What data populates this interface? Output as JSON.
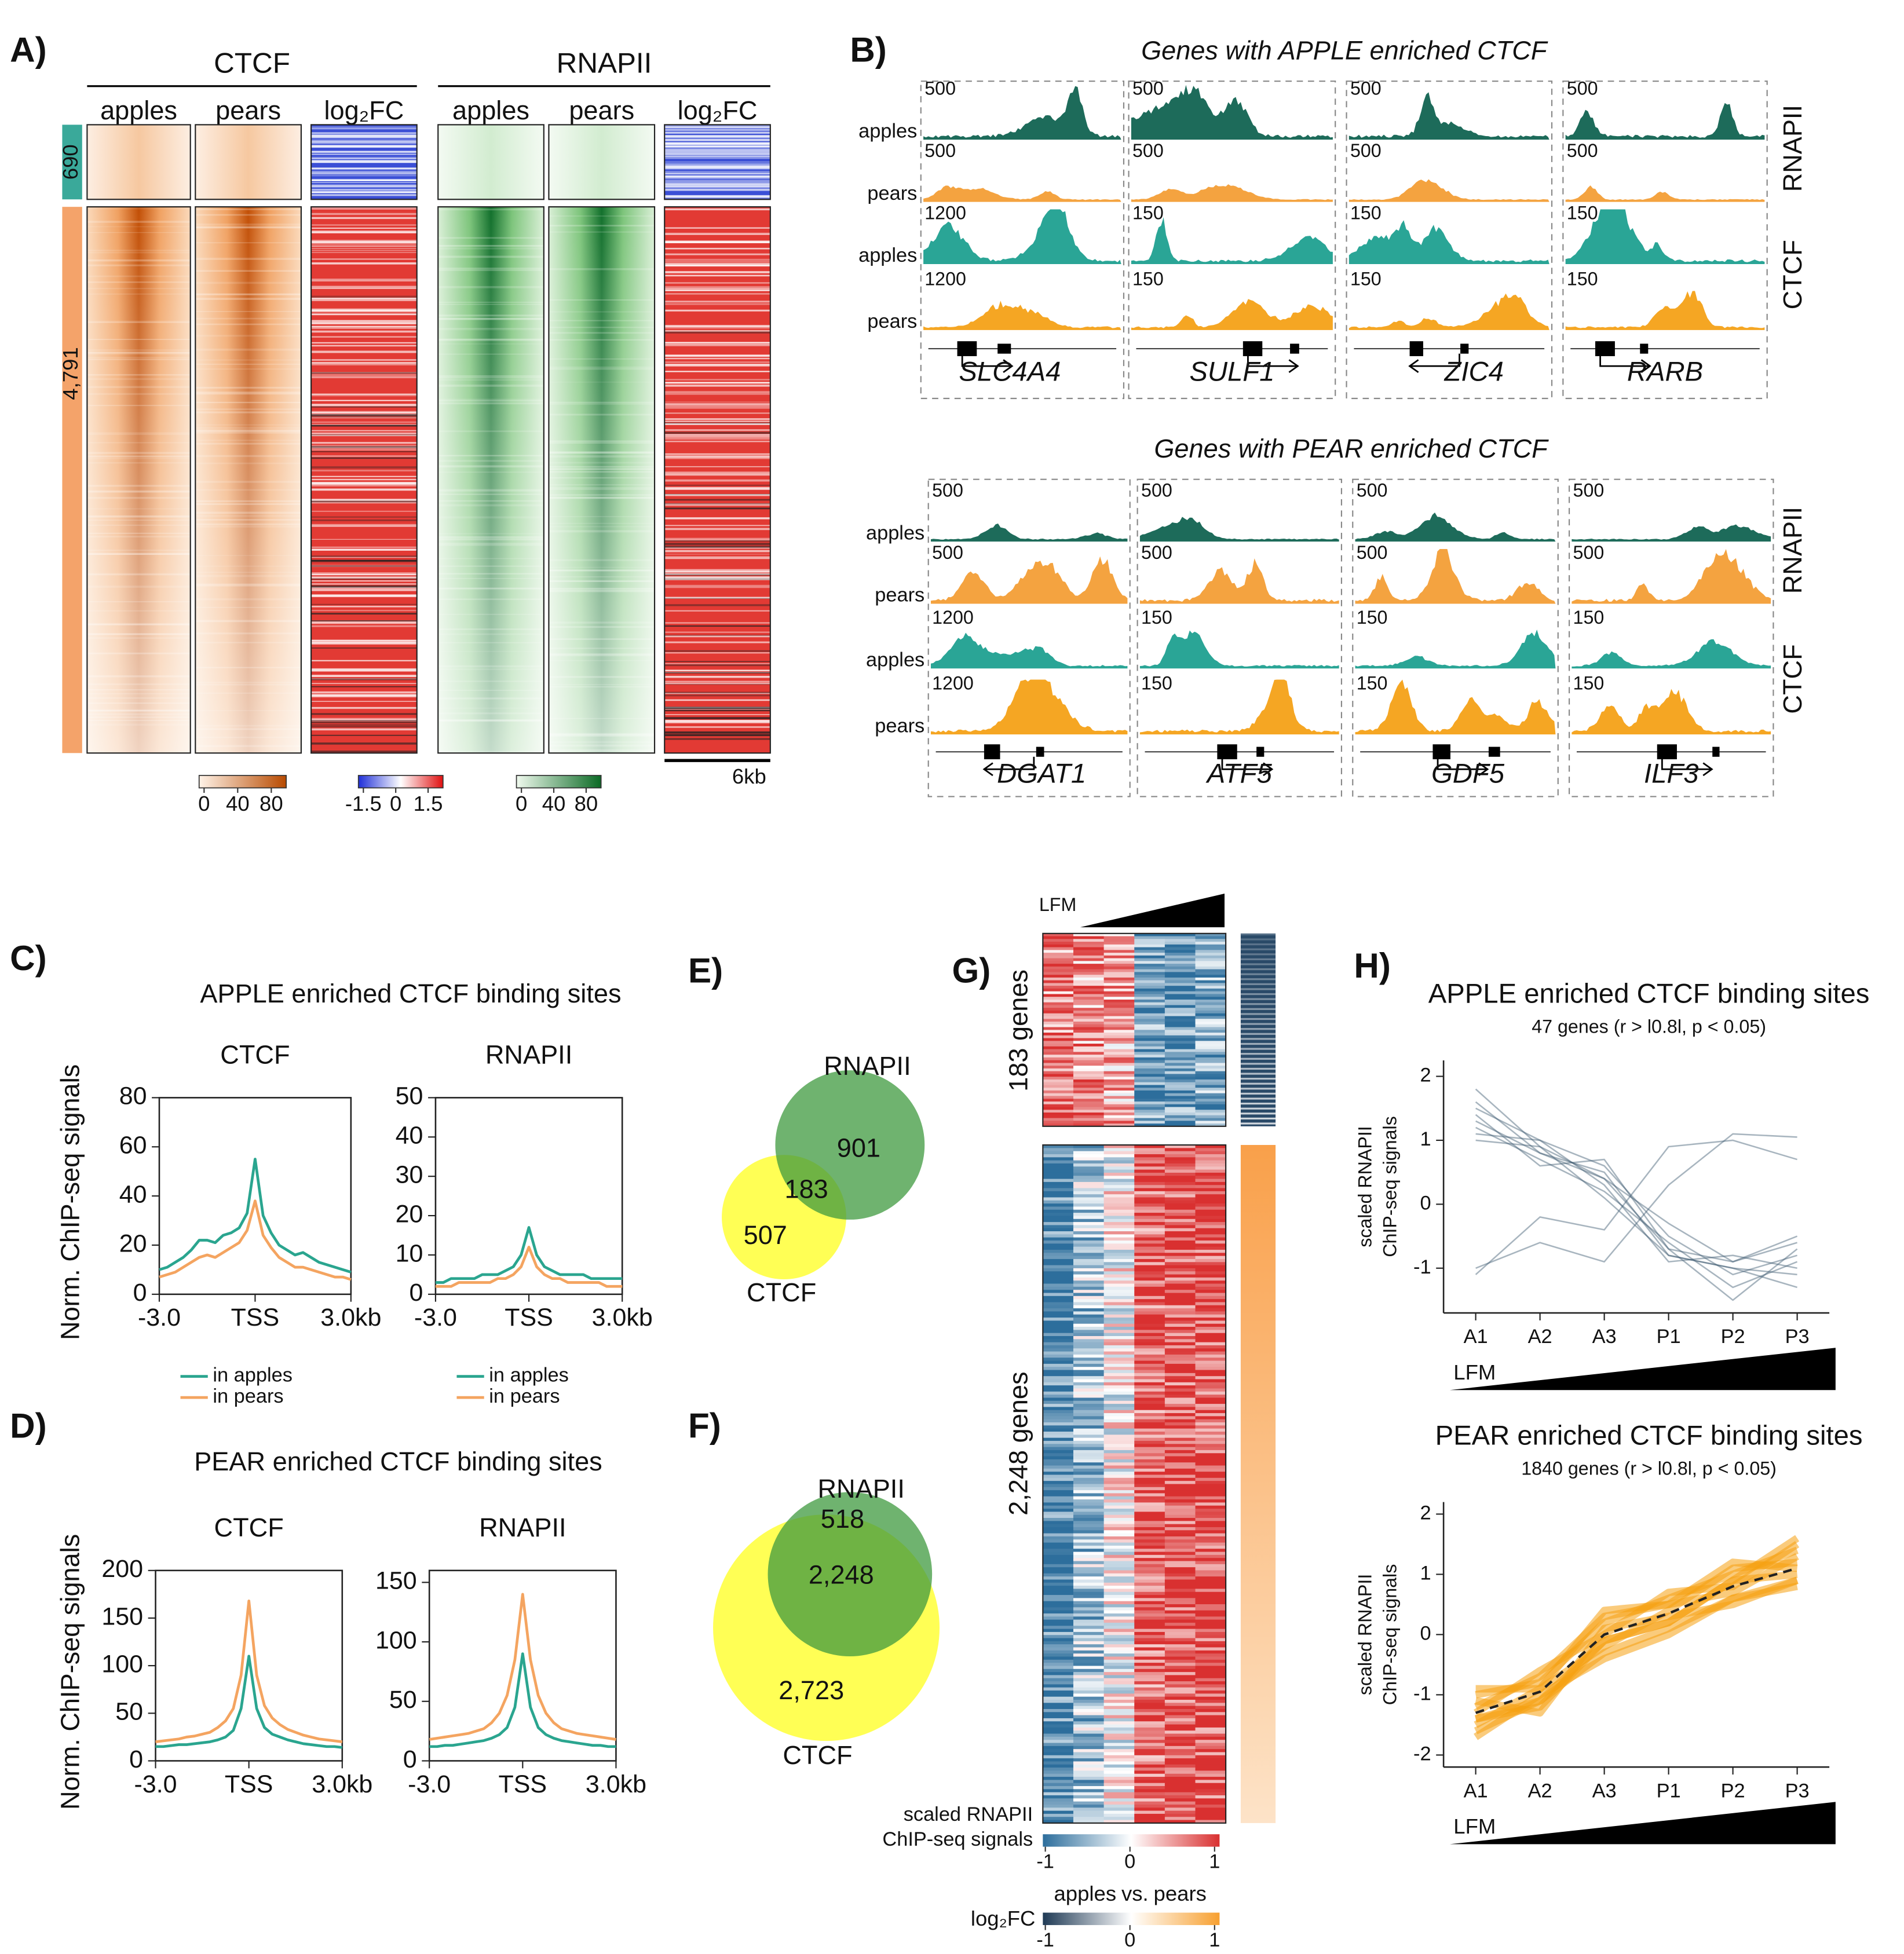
{
  "panel_labels": [
    "A)",
    "B)",
    "C)",
    "D)",
    "E)",
    "F)",
    "G)",
    "H)"
  ],
  "heatmap_a": {
    "groups": [
      {
        "title": "CTCF",
        "columns": [
          "apples",
          "pears",
          "log₂FC"
        ]
      },
      {
        "title": "RNAPII",
        "columns": [
          "apples",
          "pears",
          "log₂FC"
        ]
      }
    ],
    "rows": [
      690,
      "4,791"
    ],
    "colorbars": [
      {
        "ticks": [
          0,
          40,
          80
        ]
      },
      {
        "ticks": [
          -1.5,
          0,
          1.5
        ]
      },
      {
        "ticks": [
          0,
          40,
          80
        ]
      }
    ],
    "scale_bar": "6kb"
  },
  "panel_b": {
    "sections": [
      {
        "title": "Genes with APPLE enriched CTCF",
        "row_labels": [
          "apples",
          "pears",
          "apples",
          "pears"
        ],
        "side_labels": [
          "RNAPII",
          "CTCF"
        ],
        "genes": [
          {
            "name": "SLC4A4",
            "scales": [
              500,
              500,
              1200,
              1200
            ]
          },
          {
            "name": "SULF1",
            "scales": [
              500,
              500,
              150,
              150
            ]
          },
          {
            "name": "ZIC4",
            "scales": [
              500,
              500,
              150,
              150
            ]
          },
          {
            "name": "RARB",
            "scales": [
              500,
              500,
              150,
              150
            ]
          }
        ]
      },
      {
        "title": "Genes with PEAR enriched CTCF",
        "row_labels": [
          "apples",
          "pears",
          "apples",
          "pears"
        ],
        "side_labels": [
          "RNAPII",
          "CTCF"
        ],
        "genes": [
          {
            "name": "DGAT1",
            "scales": [
              500,
              500,
              1200,
              1200
            ]
          },
          {
            "name": "ATF5",
            "scales": [
              500,
              500,
              150,
              150
            ]
          },
          {
            "name": "GDF5",
            "scales": [
              500,
              500,
              150,
              150
            ]
          },
          {
            "name": "ILF3",
            "scales": [
              500,
              500,
              150,
              150
            ]
          }
        ]
      }
    ]
  },
  "section_titles": {
    "C": "APPLE enriched CTCF binding sites",
    "D": "PEAR enriched CTCF binding sites"
  },
  "venn_e": {
    "sets": [
      "RNAPII",
      "CTCF"
    ],
    "counts": [
      901,
      183,
      507
    ]
  },
  "venn_f": {
    "sets": [
      "RNAPII",
      "CTCF"
    ],
    "counts": [
      518,
      "2,248",
      "2,723"
    ]
  },
  "heatmap_g": {
    "wedge_label": "LFM",
    "blocks": [
      "183 genes",
      "2,248 genes"
    ],
    "colorbar_label": [
      "scaled RNAPII",
      "ChIP-seq signals"
    ],
    "colorbar_ticks": [
      -1,
      0,
      1
    ],
    "fc_legend": {
      "title": [
        "apples",
        "vs.",
        "pears"
      ],
      "title_colors": [
        "#2aa596",
        "#111111",
        "#f5a623"
      ],
      "label": "log₂FC",
      "ticks": [
        -1,
        0,
        1
      ]
    }
  },
  "chart_data": [
    {
      "type": "line",
      "title": "CTCF",
      "ylabel": "Norm. ChIP-seq signals",
      "frame": true,
      "legend": "below",
      "x": [
        -3,
        -2.75,
        -2.5,
        -2.25,
        -2,
        -1.75,
        -1.5,
        -1.25,
        -1,
        -0.75,
        -0.5,
        -0.25,
        0,
        0.25,
        0.5,
        0.75,
        1,
        1.25,
        1.5,
        1.75,
        2,
        2.25,
        2.5,
        2.75,
        3
      ],
      "xlim": [
        -3,
        3
      ],
      "xticks": [
        {
          "value": -3,
          "label": "-3.0"
        },
        {
          "value": 0,
          "label": "TSS"
        },
        {
          "value": 3,
          "label": "3.0kb"
        }
      ],
      "ylim": [
        0,
        80
      ],
      "yticks": [
        0,
        20,
        40,
        60,
        80
      ],
      "series": [
        {
          "name": "in apples",
          "color": "#2aa58f",
          "values": [
            10,
            11,
            13,
            15,
            18,
            22,
            22,
            21,
            24,
            25,
            27,
            33,
            55,
            32,
            25,
            20,
            18,
            16,
            17,
            15,
            13,
            12,
            11,
            10,
            9
          ]
        },
        {
          "name": "in pears",
          "color": "#f4a460",
          "values": [
            7,
            8,
            9,
            11,
            13,
            15,
            16,
            15,
            17,
            19,
            21,
            26,
            38,
            24,
            19,
            15,
            13,
            11,
            11,
            10,
            9,
            8,
            7,
            7,
            6
          ]
        }
      ]
    },
    {
      "type": "line",
      "title": "RNAPII",
      "frame": true,
      "legend": "below",
      "x": [
        -3,
        -2.75,
        -2.5,
        -2.25,
        -2,
        -1.75,
        -1.5,
        -1.25,
        -1,
        -0.75,
        -0.5,
        -0.25,
        0,
        0.25,
        0.5,
        0.75,
        1,
        1.25,
        1.5,
        1.75,
        2,
        2.25,
        2.5,
        2.75,
        3
      ],
      "xlim": [
        -3,
        3
      ],
      "xticks": [
        {
          "value": -3,
          "label": "-3.0"
        },
        {
          "value": 0,
          "label": "TSS"
        },
        {
          "value": 3,
          "label": "3.0kb"
        }
      ],
      "ylim": [
        0,
        50
      ],
      "yticks": [
        0,
        10,
        20,
        30,
        40,
        50
      ],
      "series": [
        {
          "name": "in apples",
          "color": "#2aa58f",
          "values": [
            3,
            3,
            4,
            4,
            4,
            4,
            5,
            5,
            5,
            6,
            7,
            10,
            17,
            10,
            7,
            6,
            5,
            5,
            5,
            5,
            4,
            4,
            4,
            4,
            4
          ]
        },
        {
          "name": "in pears",
          "color": "#f4a460",
          "values": [
            2,
            2,
            2,
            3,
            3,
            3,
            3,
            3,
            4,
            4,
            5,
            7,
            12,
            7,
            5,
            4,
            4,
            3,
            3,
            3,
            3,
            3,
            2,
            2,
            2
          ]
        }
      ]
    },
    {
      "type": "line",
      "title": "CTCF",
      "ylabel": "Norm. ChIP-seq signals",
      "frame": true,
      "x": [
        -3,
        -2.75,
        -2.5,
        -2.25,
        -2,
        -1.75,
        -1.5,
        -1.25,
        -1,
        -0.75,
        -0.5,
        -0.25,
        0,
        0.25,
        0.5,
        0.75,
        1,
        1.25,
        1.5,
        1.75,
        2,
        2.25,
        2.5,
        2.75,
        3
      ],
      "xlim": [
        -3,
        3
      ],
      "xticks": [
        {
          "value": -3,
          "label": "-3.0"
        },
        {
          "value": 0,
          "label": "TSS"
        },
        {
          "value": 3,
          "label": "3.0kb"
        }
      ],
      "ylim": [
        0,
        200
      ],
      "yticks": [
        0,
        50,
        100,
        150,
        200
      ],
      "series": [
        {
          "color": "#2aa58f",
          "values": [
            15,
            15,
            16,
            17,
            17,
            18,
            19,
            20,
            22,
            25,
            32,
            55,
            110,
            55,
            35,
            28,
            25,
            22,
            20,
            18,
            17,
            16,
            15,
            15,
            14
          ]
        },
        {
          "color": "#f4a460",
          "values": [
            20,
            21,
            22,
            23,
            25,
            26,
            28,
            30,
            35,
            42,
            55,
            90,
            168,
            90,
            58,
            45,
            38,
            33,
            30,
            27,
            25,
            23,
            22,
            21,
            20
          ]
        }
      ]
    },
    {
      "type": "line",
      "title": "RNAPII",
      "frame": true,
      "x": [
        -3,
        -2.75,
        -2.5,
        -2.25,
        -2,
        -1.75,
        -1.5,
        -1.25,
        -1,
        -0.75,
        -0.5,
        -0.25,
        0,
        0.25,
        0.5,
        0.75,
        1,
        1.25,
        1.5,
        1.75,
        2,
        2.25,
        2.5,
        2.75,
        3
      ],
      "xlim": [
        -3,
        3
      ],
      "xticks": [
        {
          "value": -3,
          "label": "-3.0"
        },
        {
          "value": 0,
          "label": "TSS"
        },
        {
          "value": 3,
          "label": "3.0kb"
        }
      ],
      "ylim": [
        0,
        160
      ],
      "yticks": [
        0,
        50,
        100,
        150
      ],
      "series": [
        {
          "color": "#2aa58f",
          "values": [
            12,
            12,
            13,
            13,
            14,
            15,
            16,
            17,
            19,
            22,
            28,
            45,
            90,
            45,
            28,
            22,
            19,
            17,
            16,
            15,
            14,
            13,
            13,
            12,
            12
          ]
        },
        {
          "color": "#f4a460",
          "values": [
            18,
            19,
            20,
            21,
            22,
            23,
            25,
            27,
            32,
            40,
            55,
            85,
            140,
            85,
            55,
            40,
            32,
            27,
            25,
            23,
            22,
            21,
            20,
            19,
            18
          ]
        }
      ]
    },
    {
      "type": "line",
      "title": "APPLE enriched CTCF binding sites",
      "subtitle": "47 genes (r > l0.8l, p < 0.05)",
      "ylabel": [
        "scaled RNAPII",
        "ChIP-seq signals"
      ],
      "frame": false,
      "wedge_label": "LFM",
      "categories": [
        "A1",
        "A2",
        "A3",
        "P1",
        "P2",
        "P3"
      ],
      "ylim": [
        -1.7,
        2.25
      ],
      "yticks": [
        -1,
        0,
        1,
        2
      ],
      "color": "#3e5a70",
      "line_alpha": 0.45,
      "line_width": 1.2,
      "series": [
        {
          "values": [
            1.8,
            0.9,
            0.4,
            -0.7,
            -0.9,
            -0.6
          ]
        },
        {
          "values": [
            1.5,
            1.0,
            0.6,
            -0.5,
            -1.1,
            -0.8
          ]
        },
        {
          "values": [
            1.3,
            0.8,
            0.5,
            -0.8,
            -1.0,
            -1.1
          ]
        },
        {
          "values": [
            1.2,
            0.7,
            0.2,
            -0.6,
            -1.3,
            -0.9
          ]
        },
        {
          "values": [
            1.1,
            1.0,
            0.3,
            -0.9,
            -0.8,
            -1.0
          ]
        },
        {
          "values": [
            1.4,
            0.6,
            0.7,
            -0.7,
            -1.5,
            -0.7
          ]
        },
        {
          "values": [
            1.0,
            0.9,
            0.1,
            -0.8,
            -1.0,
            -1.3
          ]
        },
        {
          "values": [
            1.6,
            0.8,
            0.4,
            -0.3,
            -0.9,
            -0.5
          ]
        },
        {
          "values": [
            -1.0,
            -0.6,
            -0.9,
            0.3,
            1.1,
            1.05
          ]
        },
        {
          "values": [
            -1.1,
            -0.2,
            -0.4,
            0.9,
            1.0,
            0.7
          ]
        }
      ]
    },
    {
      "type": "line",
      "title": "PEAR enriched CTCF binding sites",
      "subtitle": "1840 genes (r > l0.8l, p < 0.05)",
      "ylabel": [
        "scaled RNAPII",
        "ChIP-seq signals"
      ],
      "frame": false,
      "wedge_label": "LFM",
      "categories": [
        "A1",
        "A2",
        "A3",
        "P1",
        "P2",
        "P3"
      ],
      "ylim": [
        -2.2,
        2.2
      ],
      "yticks": [
        -2,
        -1,
        0,
        1,
        2
      ],
      "color": "#f5a010",
      "line_alpha": 0.55,
      "line_width": 6,
      "series": [
        {
          "values": [
            -1.6,
            -1.1,
            -0.3,
            0.1,
            0.6,
            0.9
          ]
        },
        {
          "values": [
            -1.0,
            -0.8,
            0.2,
            0.6,
            1.0,
            1.4
          ]
        },
        {
          "values": [
            -1.4,
            -1.2,
            -0.1,
            0.2,
            0.9,
            1.0
          ]
        },
        {
          "values": [
            -1.2,
            -0.7,
            0.3,
            0.5,
            0.7,
            1.3
          ]
        },
        {
          "values": [
            -1.5,
            -0.9,
            -0.2,
            0.4,
            1.1,
            1.2
          ]
        },
        {
          "values": [
            -1.1,
            -1.3,
            0.1,
            0.3,
            0.5,
            0.9
          ]
        },
        {
          "values": [
            -1.3,
            -0.6,
            0.0,
            0.7,
            0.8,
            1.5
          ]
        },
        {
          "values": [
            -1.7,
            -1.0,
            -0.4,
            0.0,
            0.6,
            0.8
          ]
        },
        {
          "values": [
            -0.9,
            -0.9,
            0.4,
            0.5,
            1.2,
            1.1
          ]
        },
        {
          "values": [
            -1.4,
            -1.1,
            -0.1,
            0.2,
            0.9,
            1.6
          ]
        }
      ],
      "mean_line": {
        "color": "#222222",
        "dashed": true,
        "values": [
          -1.3,
          -0.95,
          0,
          0.35,
          0.8,
          1.1
        ]
      }
    }
  ]
}
